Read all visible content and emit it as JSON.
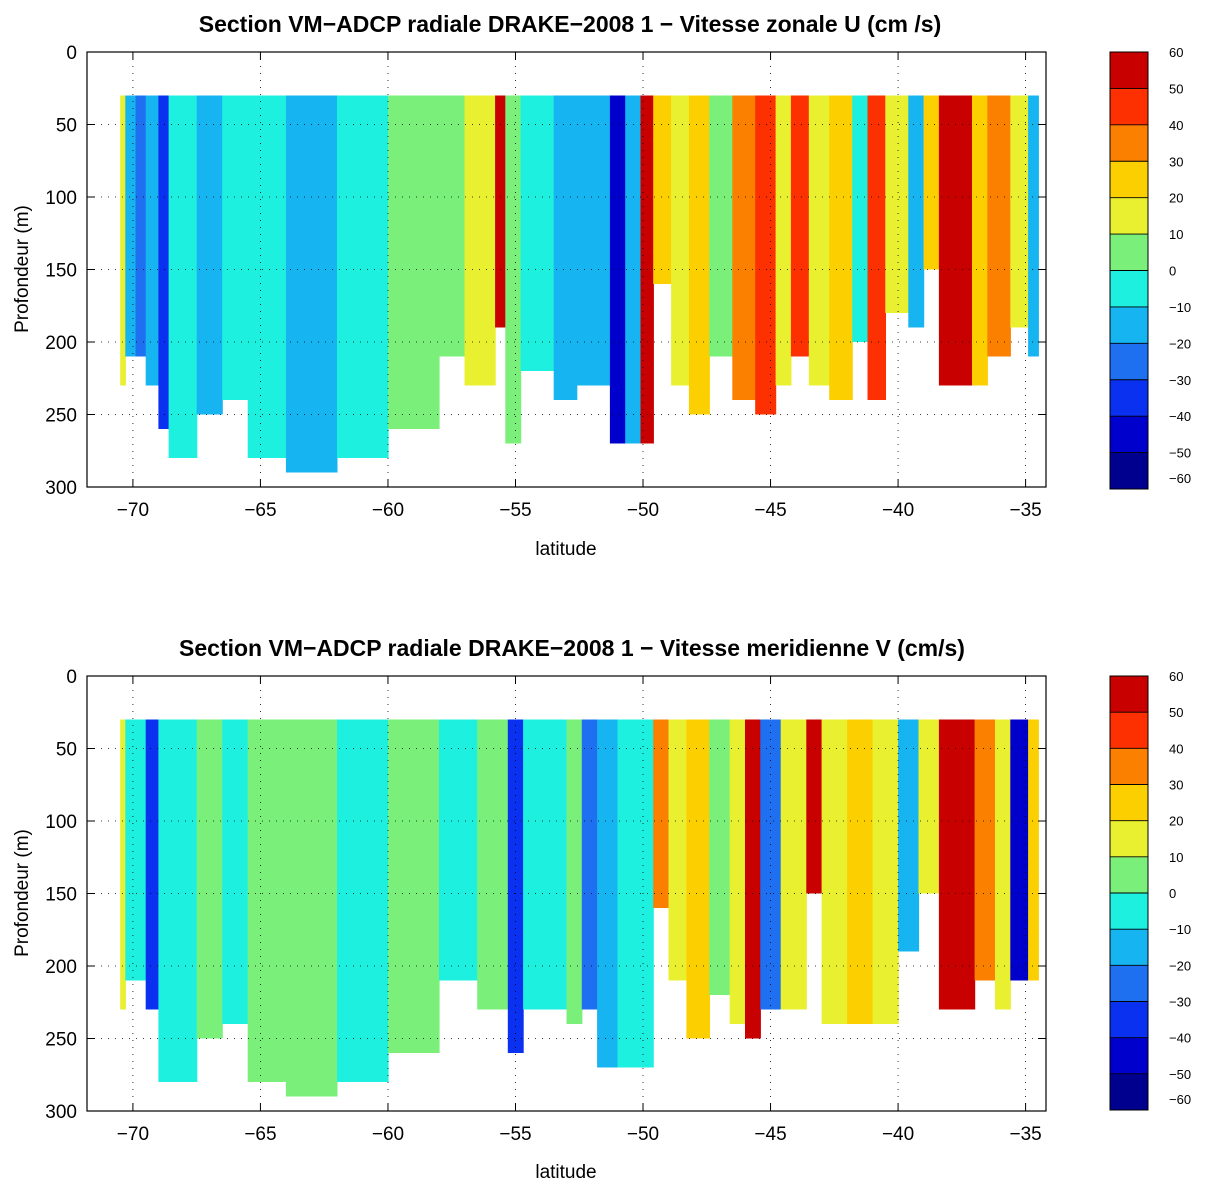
{
  "chart_data": [
    {
      "type": "heatmap",
      "title": "Section VM−ADCP radiale DRAKE−2008 1 − Vitesse zonale U (cm /s)",
      "xlabel": "latitude",
      "ylabel": "Profondeur (m)",
      "xlim": [
        -71.8,
        -34.2
      ],
      "ylim": [
        300,
        0
      ],
      "y_reversed": true,
      "grid": "dotted",
      "xticks": [
        -70,
        -65,
        -60,
        -55,
        -50,
        -45,
        -40,
        -35
      ],
      "xtick_labels": [
        "−70",
        "−65",
        "−60",
        "−55",
        "−50",
        "−45",
        "−40",
        "−35"
      ],
      "yticks": [
        0,
        50,
        100,
        150,
        200,
        250,
        300
      ],
      "ytick_labels": [
        "0",
        "50",
        "100",
        "150",
        "200",
        "250",
        "300"
      ],
      "colorbar": {
        "levels": [
          -60,
          -50,
          -40,
          -30,
          -20,
          -10,
          0,
          10,
          20,
          30,
          40,
          50,
          60
        ],
        "labels": [
          "−60",
          "−50",
          "−40",
          "−30",
          "−20",
          "−10",
          "0",
          "10",
          "20",
          "30",
          "40",
          "50",
          "60"
        ],
        "colors": [
          "#00008f",
          "#0000cc",
          "#0a30f0",
          "#1e70f0",
          "#16b4f0",
          "#1ef0e0",
          "#7af07a",
          "#e8f030",
          "#fcd000",
          "#fc8000",
          "#fc3000",
          "#c80000"
        ]
      },
      "surface_depth": 30,
      "segments": [
        {
          "lat": [
            -70.5,
            -70.3
          ],
          "value": 10,
          "bottom": 230
        },
        {
          "lat": [
            -70.3,
            -69.9
          ],
          "value": -12,
          "bottom": 210
        },
        {
          "lat": [
            -69.9,
            -69.5
          ],
          "value": -30,
          "bottom": 210
        },
        {
          "lat": [
            -69.5,
            -69.0
          ],
          "value": -15,
          "bottom": 230
        },
        {
          "lat": [
            -69.0,
            -68.6
          ],
          "value": -38,
          "bottom": 260
        },
        {
          "lat": [
            -68.6,
            -67.5
          ],
          "value": -10,
          "bottom": 280
        },
        {
          "lat": [
            -67.5,
            -66.5
          ],
          "value": -14,
          "bottom": 250
        },
        {
          "lat": [
            -66.5,
            -65.5
          ],
          "value": -8,
          "bottom": 240
        },
        {
          "lat": [
            -65.5,
            -64.0
          ],
          "value": -9,
          "bottom": 280
        },
        {
          "lat": [
            -64.0,
            -62.0
          ],
          "value": -11,
          "bottom": 290
        },
        {
          "lat": [
            -62.0,
            -60.0
          ],
          "value": -6,
          "bottom": 280
        },
        {
          "lat": [
            -60.0,
            -58.0
          ],
          "value": 2,
          "bottom": 260
        },
        {
          "lat": [
            -58.0,
            -57.0
          ],
          "value": 6,
          "bottom": 210
        },
        {
          "lat": [
            -57.0,
            -55.8
          ],
          "value": 12,
          "bottom": 230
        },
        {
          "lat": [
            -55.8,
            -55.4
          ],
          "value": 55,
          "bottom": 190
        },
        {
          "lat": [
            -55.4,
            -54.8
          ],
          "value": 5,
          "bottom": 270
        },
        {
          "lat": [
            -54.8,
            -53.5
          ],
          "value": -10,
          "bottom": 220
        },
        {
          "lat": [
            -53.5,
            -52.6
          ],
          "value": -16,
          "bottom": 240
        },
        {
          "lat": [
            -52.6,
            -51.3
          ],
          "value": -12,
          "bottom": 230
        },
        {
          "lat": [
            -51.3,
            -50.7
          ],
          "value": -42,
          "bottom": 270
        },
        {
          "lat": [
            -50.7,
            -50.1
          ],
          "value": -20,
          "bottom": 270
        },
        {
          "lat": [
            -50.1,
            -49.6
          ],
          "value": 55,
          "bottom": 270
        },
        {
          "lat": [
            -49.6,
            -48.9
          ],
          "value": 22,
          "bottom": 160
        },
        {
          "lat": [
            -48.9,
            -48.2
          ],
          "value": 14,
          "bottom": 230
        },
        {
          "lat": [
            -48.2,
            -47.4
          ],
          "value": 25,
          "bottom": 250
        },
        {
          "lat": [
            -47.4,
            -46.5
          ],
          "value": 8,
          "bottom": 210
        },
        {
          "lat": [
            -46.5,
            -45.6
          ],
          "value": 32,
          "bottom": 240
        },
        {
          "lat": [
            -45.6,
            -44.8
          ],
          "value": 40,
          "bottom": 250
        },
        {
          "lat": [
            -44.8,
            -44.2
          ],
          "value": 18,
          "bottom": 230
        },
        {
          "lat": [
            -44.2,
            -43.5
          ],
          "value": 45,
          "bottom": 210
        },
        {
          "lat": [
            -43.5,
            -42.7
          ],
          "value": 15,
          "bottom": 230
        },
        {
          "lat": [
            -42.7,
            -41.8
          ],
          "value": 24,
          "bottom": 240
        },
        {
          "lat": [
            -41.8,
            -41.2
          ],
          "value": -8,
          "bottom": 200
        },
        {
          "lat": [
            -41.2,
            -40.5
          ],
          "value": 42,
          "bottom": 240
        },
        {
          "lat": [
            -40.5,
            -39.6
          ],
          "value": 14,
          "bottom": 180
        },
        {
          "lat": [
            -39.6,
            -39.0
          ],
          "value": -15,
          "bottom": 190
        },
        {
          "lat": [
            -39.0,
            -38.4
          ],
          "value": 28,
          "bottom": 150
        },
        {
          "lat": [
            -38.4,
            -37.1
          ],
          "value": 65,
          "bottom": 230
        },
        {
          "lat": [
            -37.1,
            -36.5
          ],
          "value": 22,
          "bottom": 230
        },
        {
          "lat": [
            -36.5,
            -35.6
          ],
          "value": 35,
          "bottom": 210
        },
        {
          "lat": [
            -35.6,
            -34.9
          ],
          "value": 18,
          "bottom": 190
        },
        {
          "lat": [
            -34.9,
            -34.5
          ],
          "value": -12,
          "bottom": 210
        }
      ]
    },
    {
      "type": "heatmap",
      "title": "Section VM−ADCP radiale DRAKE−2008 1 − Vitesse meridienne V  (cm/s)",
      "xlabel": "latitude",
      "ylabel": "Profondeur (m)",
      "xlim": [
        -71.8,
        -34.2
      ],
      "ylim": [
        300,
        0
      ],
      "y_reversed": true,
      "grid": "dotted",
      "xticks": [
        -70,
        -65,
        -60,
        -55,
        -50,
        -45,
        -40,
        -35
      ],
      "xtick_labels": [
        "−70",
        "−65",
        "−60",
        "−55",
        "−50",
        "−45",
        "−40",
        "−35"
      ],
      "yticks": [
        0,
        50,
        100,
        150,
        200,
        250,
        300
      ],
      "ytick_labels": [
        "0",
        "50",
        "100",
        "150",
        "200",
        "250",
        "300"
      ],
      "colorbar": {
        "levels": [
          -60,
          -50,
          -40,
          -30,
          -20,
          -10,
          0,
          10,
          20,
          30,
          40,
          50,
          60
        ],
        "labels": [
          "−60",
          "−50",
          "−40",
          "−30",
          "−20",
          "−10",
          "0",
          "10",
          "20",
          "30",
          "40",
          "50",
          "60"
        ],
        "colors": [
          "#00008f",
          "#0000cc",
          "#0a30f0",
          "#1e70f0",
          "#16b4f0",
          "#1ef0e0",
          "#7af07a",
          "#e8f030",
          "#fcd000",
          "#fc8000",
          "#fc3000",
          "#c80000"
        ]
      },
      "surface_depth": 30,
      "segments": [
        {
          "lat": [
            -70.5,
            -70.3
          ],
          "value": 10,
          "bottom": 230
        },
        {
          "lat": [
            -70.3,
            -69.5
          ],
          "value": -8,
          "bottom": 210
        },
        {
          "lat": [
            -69.5,
            -69.0
          ],
          "value": -38,
          "bottom": 230
        },
        {
          "lat": [
            -69.0,
            -67.5
          ],
          "value": -5,
          "bottom": 280
        },
        {
          "lat": [
            -67.5,
            -66.5
          ],
          "value": 4,
          "bottom": 250
        },
        {
          "lat": [
            -66.5,
            -65.5
          ],
          "value": -6,
          "bottom": 240
        },
        {
          "lat": [
            -65.5,
            -64.0
          ],
          "value": 2,
          "bottom": 280
        },
        {
          "lat": [
            -64.0,
            -62.0
          ],
          "value": 6,
          "bottom": 290
        },
        {
          "lat": [
            -62.0,
            -60.0
          ],
          "value": -4,
          "bottom": 280
        },
        {
          "lat": [
            -60.0,
            -58.0
          ],
          "value": 5,
          "bottom": 260
        },
        {
          "lat": [
            -58.0,
            -56.5
          ],
          "value": -10,
          "bottom": 210
        },
        {
          "lat": [
            -56.5,
            -55.3
          ],
          "value": 3,
          "bottom": 230
        },
        {
          "lat": [
            -55.3,
            -54.7
          ],
          "value": -40,
          "bottom": 260
        },
        {
          "lat": [
            -54.7,
            -53.0
          ],
          "value": -6,
          "bottom": 230
        },
        {
          "lat": [
            -53.0,
            -52.4
          ],
          "value": 8,
          "bottom": 240
        },
        {
          "lat": [
            -52.4,
            -51.8
          ],
          "value": -30,
          "bottom": 230
        },
        {
          "lat": [
            -51.8,
            -51.0
          ],
          "value": -18,
          "bottom": 270
        },
        {
          "lat": [
            -51.0,
            -49.6
          ],
          "value": -8,
          "bottom": 270
        },
        {
          "lat": [
            -49.6,
            -49.0
          ],
          "value": 38,
          "bottom": 160
        },
        {
          "lat": [
            -49.0,
            -48.3
          ],
          "value": 12,
          "bottom": 210
        },
        {
          "lat": [
            -48.3,
            -47.4
          ],
          "value": 22,
          "bottom": 250
        },
        {
          "lat": [
            -47.4,
            -46.6
          ],
          "value": 6,
          "bottom": 220
        },
        {
          "lat": [
            -46.6,
            -46.0
          ],
          "value": 14,
          "bottom": 240
        },
        {
          "lat": [
            -46.0,
            -45.4
          ],
          "value": 50,
          "bottom": 250
        },
        {
          "lat": [
            -45.4,
            -44.6
          ],
          "value": -22,
          "bottom": 230
        },
        {
          "lat": [
            -44.6,
            -43.6
          ],
          "value": 18,
          "bottom": 230
        },
        {
          "lat": [
            -43.6,
            -43.0
          ],
          "value": 58,
          "bottom": 150
        },
        {
          "lat": [
            -43.0,
            -42.0
          ],
          "value": 12,
          "bottom": 240
        },
        {
          "lat": [
            -42.0,
            -41.0
          ],
          "value": 24,
          "bottom": 240
        },
        {
          "lat": [
            -41.0,
            -40.0
          ],
          "value": 16,
          "bottom": 240
        },
        {
          "lat": [
            -40.0,
            -39.2
          ],
          "value": -12,
          "bottom": 190
        },
        {
          "lat": [
            -39.2,
            -38.4
          ],
          "value": 12,
          "bottom": 150
        },
        {
          "lat": [
            -38.4,
            -37.0
          ],
          "value": 65,
          "bottom": 230
        },
        {
          "lat": [
            -37.0,
            -36.2
          ],
          "value": 34,
          "bottom": 210
        },
        {
          "lat": [
            -36.2,
            -35.6
          ],
          "value": 12,
          "bottom": 230
        },
        {
          "lat": [
            -35.6,
            -34.9
          ],
          "value": -42,
          "bottom": 210
        },
        {
          "lat": [
            -34.9,
            -34.5
          ],
          "value": 25,
          "bottom": 210
        }
      ]
    }
  ]
}
